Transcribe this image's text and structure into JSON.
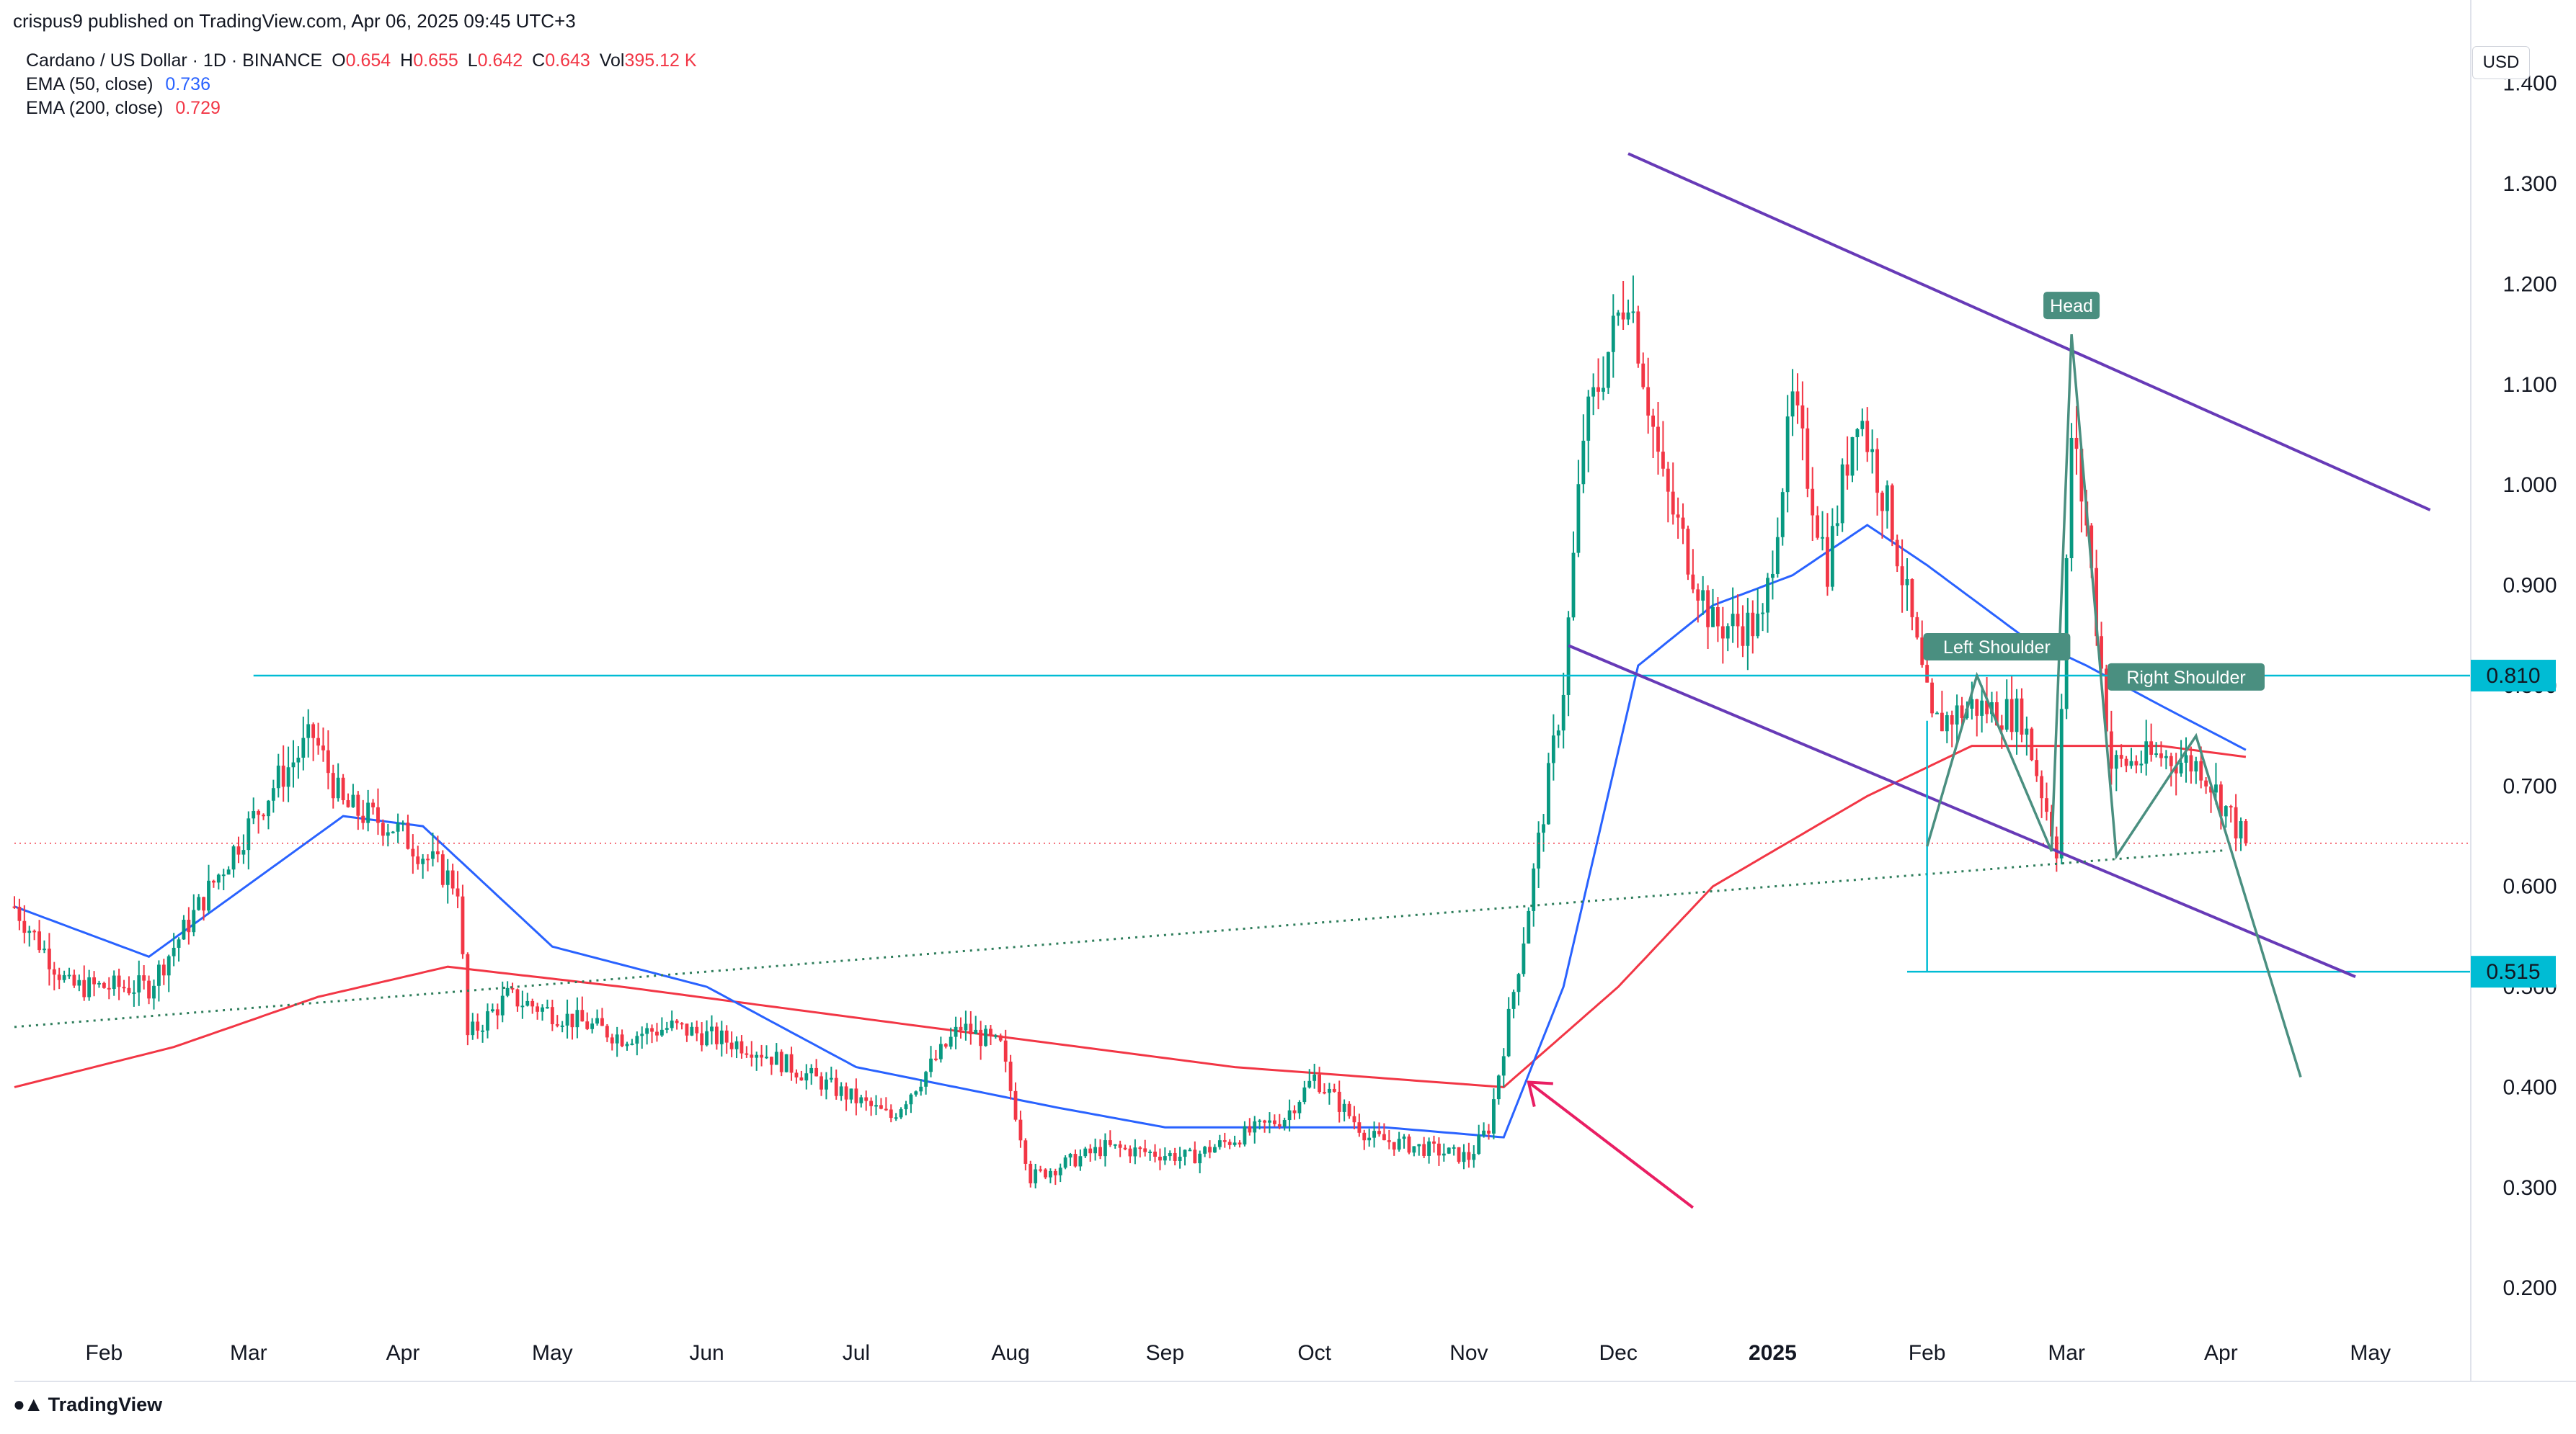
{
  "publisher": "crispus9 published on TradingView.com, Apr 06, 2025 09:45 UTC+3",
  "symbol": {
    "title": "Cardano / US Dollar · 1D · BINANCE",
    "open_label": "O",
    "open": "0.654",
    "high_label": "H",
    "high": "0.655",
    "low_label": "L",
    "low": "0.642",
    "close_label": "C",
    "close": "0.643",
    "vol_label": "Vol",
    "vol": "395.12 K"
  },
  "indicators": [
    {
      "label": "EMA (50, close)",
      "value": "0.736",
      "color": "#2962ff"
    },
    {
      "label": "EMA (200, close)",
      "value": "0.729",
      "color": "#f23645"
    }
  ],
  "currency": "USD",
  "footer_brand": "TradingView",
  "colors": {
    "up": "#089981",
    "down": "#f23645",
    "ema50": "#2962ff",
    "ema200": "#f23645",
    "channel": "#673ab7",
    "level": "#00bcd4",
    "pattern": "#4a8f80",
    "arrow": "#e91e63"
  },
  "chart_data": {
    "type": "candlestick",
    "y_ticks": [
      "1.400",
      "1.300",
      "1.200",
      "1.100",
      "1.000",
      "0.900",
      "0.800",
      "0.700",
      "0.600",
      "0.500",
      "0.400",
      "0.300",
      "0.200"
    ],
    "y_range": [
      0.17,
      1.44
    ],
    "x_ticks": [
      "Feb",
      "Mar",
      "Apr",
      "May",
      "Jun",
      "Jul",
      "Aug",
      "Sep",
      "Oct",
      "Nov",
      "Dec",
      "2025",
      "Feb",
      "Mar",
      "Apr",
      "May"
    ],
    "x_range": [
      "2024-01-14",
      "2025-05-20"
    ],
    "last_price": 0.643,
    "levels": [
      {
        "label": "0.810",
        "value": 0.81
      },
      {
        "label": "0.515",
        "value": 0.515
      }
    ],
    "annotations": [
      "Head",
      "Left Shoulder",
      "Right Shoulder"
    ],
    "anchors": [
      [
        "2024-01-14",
        0.58
      ],
      [
        "2024-01-25",
        0.5
      ],
      [
        "2024-02-10",
        0.5
      ],
      [
        "2024-02-25",
        0.62
      ],
      [
        "2024-03-06",
        0.7
      ],
      [
        "2024-03-14",
        0.75
      ],
      [
        "2024-03-20",
        0.68
      ],
      [
        "2024-03-30",
        0.66
      ],
      [
        "2024-04-12",
        0.6
      ],
      [
        "2024-04-14",
        0.45
      ],
      [
        "2024-04-22",
        0.49
      ],
      [
        "2024-05-15",
        0.45
      ],
      [
        "2024-05-25",
        0.46
      ],
      [
        "2024-06-10",
        0.44
      ],
      [
        "2024-06-30",
        0.39
      ],
      [
        "2024-07-08",
        0.37
      ],
      [
        "2024-07-22",
        0.46
      ],
      [
        "2024-07-30",
        0.44
      ],
      [
        "2024-08-05",
        0.31
      ],
      [
        "2024-08-20",
        0.34
      ],
      [
        "2024-09-06",
        0.33
      ],
      [
        "2024-09-25",
        0.37
      ],
      [
        "2024-10-01",
        0.41
      ],
      [
        "2024-10-12",
        0.35
      ],
      [
        "2024-11-01",
        0.33
      ],
      [
        "2024-11-05",
        0.36
      ],
      [
        "2024-11-12",
        0.55
      ],
      [
        "2024-11-20",
        0.8
      ],
      [
        "2024-11-24",
        1.05
      ],
      [
        "2024-12-03",
        1.2
      ],
      [
        "2024-12-10",
        1.0
      ],
      [
        "2024-12-20",
        0.86
      ],
      [
        "2024-12-30",
        0.86
      ],
      [
        "2025-01-05",
        1.08
      ],
      [
        "2025-01-12",
        0.92
      ],
      [
        "2025-01-18",
        1.08
      ],
      [
        "2025-01-25",
        0.96
      ],
      [
        "2025-02-02",
        0.76
      ],
      [
        "2025-02-10",
        0.78
      ],
      [
        "2025-02-20",
        0.77
      ],
      [
        "2025-02-27",
        0.64
      ],
      [
        "2025-03-02",
        1.05
      ],
      [
        "2025-03-05",
        0.96
      ],
      [
        "2025-03-10",
        0.72
      ],
      [
        "2025-03-20",
        0.73
      ],
      [
        "2025-03-28",
        0.72
      ],
      [
        "2025-04-06",
        0.643
      ]
    ],
    "ema50_anchors": [
      [
        "2024-01-14",
        0.58
      ],
      [
        "2024-02-10",
        0.53
      ],
      [
        "2024-03-20",
        0.67
      ],
      [
        "2024-04-05",
        0.66
      ],
      [
        "2024-05-01",
        0.54
      ],
      [
        "2024-06-01",
        0.5
      ],
      [
        "2024-07-01",
        0.42
      ],
      [
        "2024-08-10",
        0.38
      ],
      [
        "2024-09-01",
        0.36
      ],
      [
        "2024-10-15",
        0.36
      ],
      [
        "2024-11-08",
        0.35
      ],
      [
        "2024-11-20",
        0.5
      ],
      [
        "2024-12-05",
        0.82
      ],
      [
        "2024-12-20",
        0.88
      ],
      [
        "2025-01-05",
        0.91
      ],
      [
        "2025-01-20",
        0.96
      ],
      [
        "2025-02-01",
        0.92
      ],
      [
        "2025-02-20",
        0.85
      ],
      [
        "2025-03-05",
        0.82
      ],
      [
        "2025-03-20",
        0.78
      ],
      [
        "2025-04-06",
        0.736
      ]
    ],
    "ema200_anchors": [
      [
        "2024-01-14",
        0.4
      ],
      [
        "2024-02-15",
        0.44
      ],
      [
        "2024-03-15",
        0.49
      ],
      [
        "2024-04-10",
        0.52
      ],
      [
        "2024-05-15",
        0.5
      ],
      [
        "2024-07-15",
        0.46
      ],
      [
        "2024-09-15",
        0.42
      ],
      [
        "2024-11-08",
        0.4
      ],
      [
        "2024-12-01",
        0.5
      ],
      [
        "2024-12-20",
        0.6
      ],
      [
        "2025-01-20",
        0.69
      ],
      [
        "2025-02-10",
        0.74
      ],
      [
        "2025-03-01",
        0.74
      ],
      [
        "2025-03-20",
        0.74
      ],
      [
        "2025-04-06",
        0.729
      ]
    ]
  }
}
